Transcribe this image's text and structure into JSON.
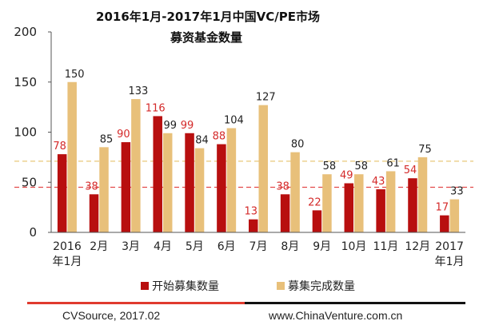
{
  "chart_data": {
    "type": "bar",
    "title": "2016年1月-2017年1月中国VC/PE市场",
    "subtitle": "募资基金数量",
    "categories": [
      [
        "2016",
        "年1月"
      ],
      [
        "2月"
      ],
      [
        "3月"
      ],
      [
        "4月"
      ],
      [
        "5月"
      ],
      [
        "6月"
      ],
      [
        "7月"
      ],
      [
        "8月"
      ],
      [
        "9月"
      ],
      [
        "10月"
      ],
      [
        "11月"
      ],
      [
        "12月"
      ],
      [
        "2017",
        "年1月"
      ]
    ],
    "series": [
      {
        "name": "开始募集数量",
        "color": "#b80f0f",
        "label_color": "#d42a2a",
        "values": [
          78,
          38,
          90,
          116,
          99,
          88,
          13,
          38,
          22,
          49,
          43,
          54,
          17
        ]
      },
      {
        "name": "募集完成数量",
        "color": "#e8c07a",
        "label_color": "#222222",
        "values": [
          150,
          85,
          133,
          99,
          84,
          104,
          127,
          80,
          58,
          58,
          61,
          75,
          33
        ]
      }
    ],
    "ylim": [
      0,
      200
    ],
    "yticks": [
      0,
      50,
      100,
      150,
      200
    ],
    "reference_lines": [
      {
        "value": 71,
        "style": "dashed",
        "color": "#e8c87a"
      },
      {
        "value": 45,
        "style": "dashed",
        "color": "#e24a4a"
      }
    ],
    "legend": "bottom"
  },
  "footer": {
    "source": "CVSource, 2017.02",
    "website": "www.ChinaVenture.com.cn"
  }
}
